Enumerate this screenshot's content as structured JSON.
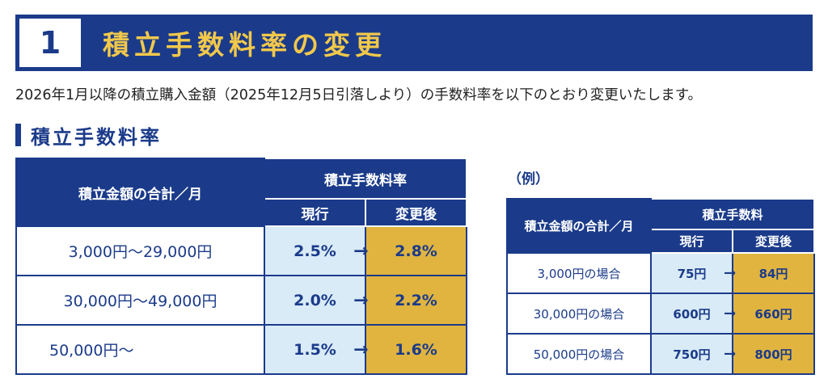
{
  "banner": {
    "number": "1",
    "title": "積立手数料率の変更"
  },
  "lead": "2026年1月以降の積立購入金額（2025年12月5日引落しより）の手数料率を以下のとおり変更いたします。",
  "section": {
    "title": "積立手数料率"
  },
  "rates_table": {
    "col_amount": "積立金額の合計／月",
    "col_group": "積立手数料率",
    "col_current": "現行",
    "col_new": "変更後",
    "rows": [
      {
        "amount": "3,000円〜29,000円",
        "current": "2.5%",
        "new": "2.8%"
      },
      {
        "amount": "30,000円〜49,000円",
        "current": "2.0%",
        "new": "2.2%"
      },
      {
        "amount": "50,000円〜",
        "current": "1.5%",
        "new": "1.6%"
      }
    ]
  },
  "example": {
    "label": "（例）",
    "col_amount": "積立金額の合計／月",
    "col_group": "積立手数料",
    "col_current": "現行",
    "col_new": "変更後",
    "rows": [
      {
        "amount": "3,000円の場合",
        "current": "75円",
        "new": "84円"
      },
      {
        "amount": "30,000円の場合",
        "current": "600円",
        "new": "660円"
      },
      {
        "amount": "50,000円の場合",
        "current": "750円",
        "new": "800円"
      }
    ]
  },
  "arrow_glyph": "→",
  "colors": {
    "navy": "#1b3b8a",
    "gold": "#f2c84b",
    "current_bg": "#d9ebf7",
    "new_bg": "#e0b43f"
  }
}
